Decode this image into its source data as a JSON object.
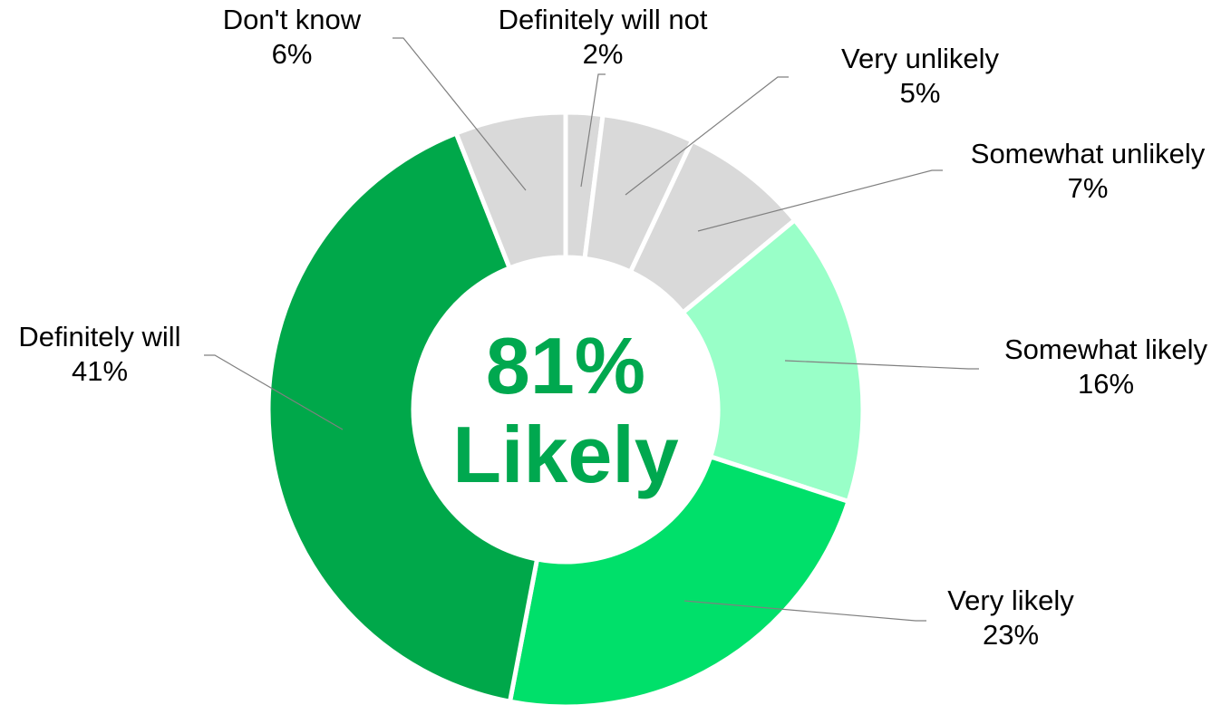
{
  "chart_data": {
    "type": "donut",
    "title": "",
    "center": {
      "value": "81%",
      "label": "Likely",
      "color": "#00a84f"
    },
    "slices": [
      {
        "label": "Definitely will not",
        "value": 2,
        "value_label": "2%",
        "color": "#d9d9d9"
      },
      {
        "label": "Very unlikely",
        "value": 5,
        "value_label": "5%",
        "color": "#d9d9d9"
      },
      {
        "label": "Somewhat unlikely",
        "value": 7,
        "value_label": "7%",
        "color": "#d9d9d9"
      },
      {
        "label": "Somewhat likely",
        "value": 16,
        "value_label": "16%",
        "color": "#99ffc8"
      },
      {
        "label": "Very likely",
        "value": 23,
        "value_label": "23%",
        "color": "#00e06a"
      },
      {
        "label": "Definitely will",
        "value": 41,
        "value_label": "41%",
        "color": "#00a84a"
      },
      {
        "label": "Don't know",
        "value": 6,
        "value_label": "6%",
        "color": "#d9d9d9"
      }
    ]
  }
}
